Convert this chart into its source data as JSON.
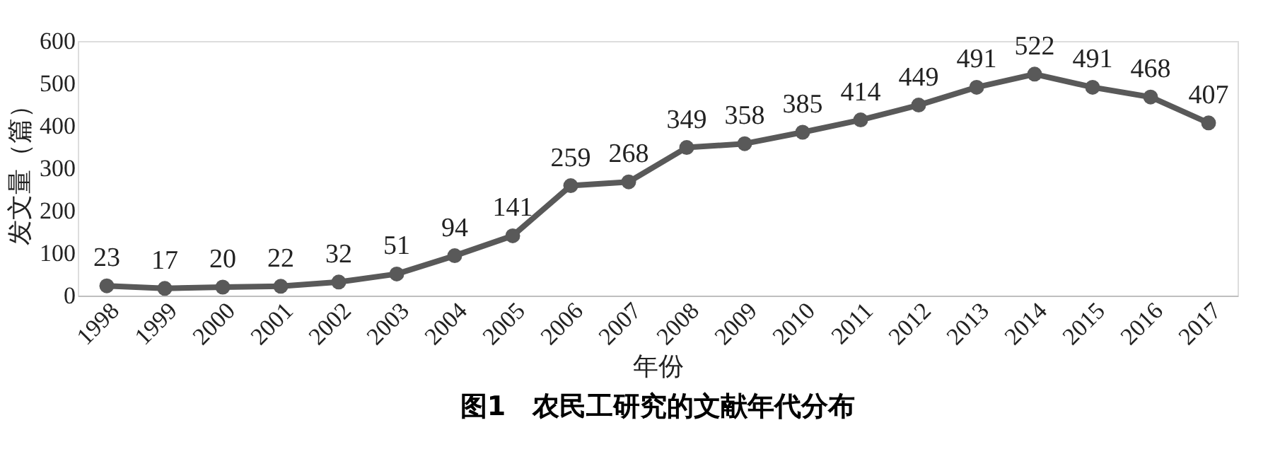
{
  "chart_data": {
    "type": "line",
    "title": "图1　农民工研究的文献年代分布",
    "xlabel": "年份",
    "ylabel": "发文量（篇）",
    "categories": [
      "1998",
      "1999",
      "2000",
      "2001",
      "2002",
      "2003",
      "2004",
      "2005",
      "2006",
      "2007",
      "2008",
      "2009",
      "2010",
      "2011",
      "2012",
      "2013",
      "2014",
      "2015",
      "2016",
      "2017"
    ],
    "series": [
      {
        "color": "#595959",
        "values": [
          23,
          17,
          20,
          22,
          32,
          51,
          94,
          141,
          259,
          268,
          349,
          358,
          385,
          414,
          449,
          491,
          522,
          491,
          468,
          407
        ]
      }
    ],
    "ylim": [
      0,
      600
    ],
    "yticks": [
      0,
      100,
      200,
      300,
      400,
      500,
      600
    ],
    "marker": "circle",
    "line_style": "solid",
    "data_labels": true,
    "grid": false
  }
}
